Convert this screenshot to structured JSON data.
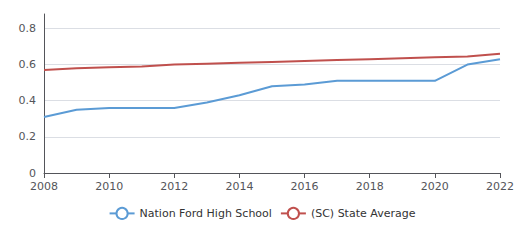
{
  "chart_data": {
    "type": "line",
    "x": [
      2008,
      2009,
      2010,
      2011,
      2012,
      2013,
      2014,
      2015,
      2016,
      2017,
      2018,
      2019,
      2020,
      2021,
      2022
    ],
    "series": [
      {
        "name": "Nation Ford High School",
        "color": "#5b9bd5",
        "values": [
          0.31,
          0.35,
          0.36,
          0.36,
          0.36,
          0.39,
          0.43,
          0.48,
          0.49,
          0.51,
          0.51,
          0.51,
          0.51,
          0.6,
          0.63
        ]
      },
      {
        "name": "(SC) State Average",
        "color": "#c0504d",
        "values": [
          0.57,
          0.58,
          0.585,
          0.59,
          0.6,
          0.605,
          0.61,
          0.615,
          0.62,
          0.625,
          0.63,
          0.635,
          0.64,
          0.645,
          0.66
        ]
      }
    ],
    "xlim": [
      2008,
      2022
    ],
    "xticks": [
      2008,
      2010,
      2012,
      2014,
      2016,
      2018,
      2020,
      2022
    ],
    "ylim": [
      0,
      0.88
    ],
    "yticks": [
      0,
      0.2,
      0.4,
      0.6,
      0.8
    ],
    "grid": true,
    "legend": "bottom"
  }
}
